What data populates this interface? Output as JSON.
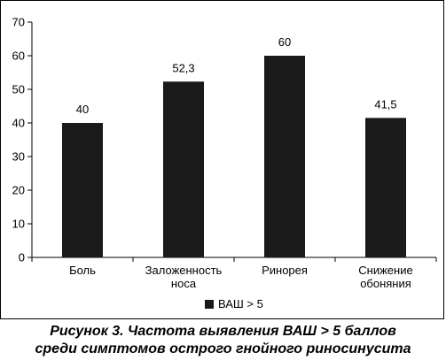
{
  "chart_data": {
    "type": "bar",
    "categories": [
      [
        "Боль"
      ],
      [
        "Заложенность",
        "носа"
      ],
      [
        "Ринорея"
      ],
      [
        "Снижение",
        "обоняния"
      ]
    ],
    "series": [
      {
        "name": "ВАШ > 5",
        "values": [
          40,
          52.3,
          60,
          41.5
        ]
      }
    ],
    "data_labels": [
      "40",
      "52,3",
      "60",
      "41,5"
    ],
    "yticks": [
      "0",
      "10",
      "20",
      "30",
      "40",
      "50",
      "60",
      "70"
    ],
    "ylim": [
      0,
      70
    ],
    "bar_color": "#1a1a1a",
    "legend_position": "bottom",
    "grid": false
  },
  "caption": {
    "line1": "Рисунок 3. Частота выявления ВАШ > 5 баллов",
    "line2": "среди симптомов острого гнойного риносинусита"
  }
}
